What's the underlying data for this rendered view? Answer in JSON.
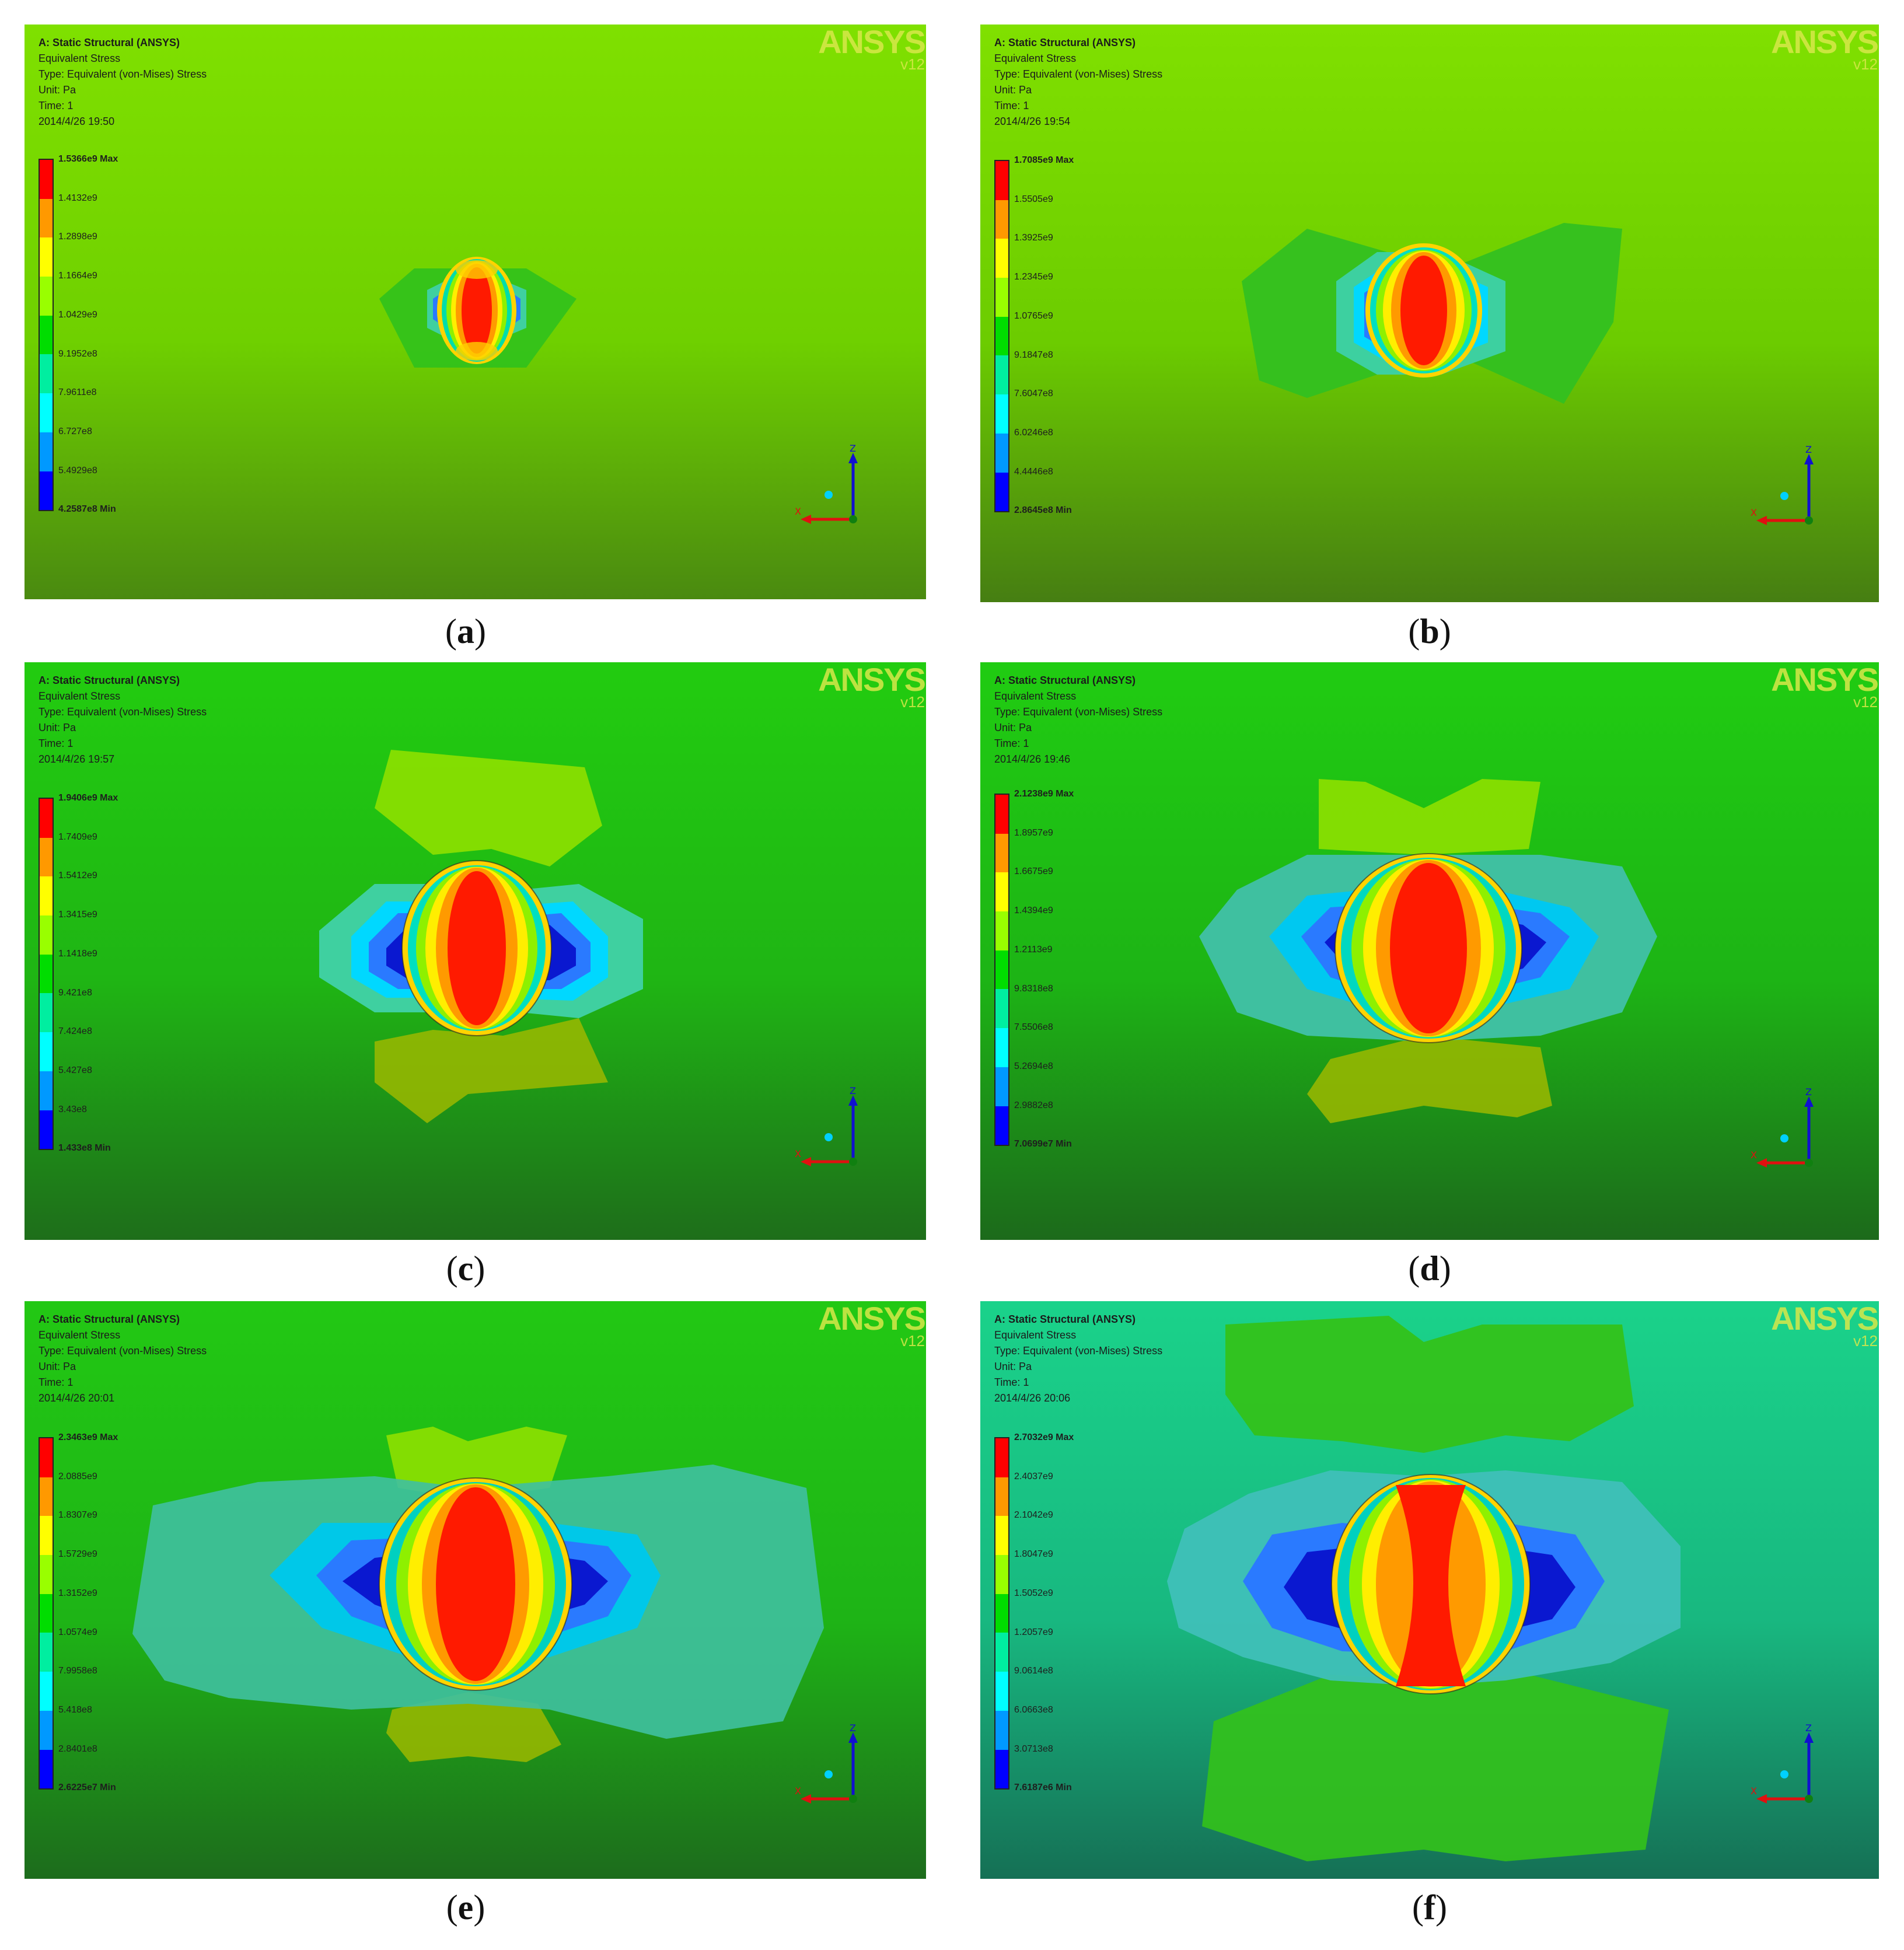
{
  "panels": [
    {
      "caption_letter": "a",
      "header": {
        "title": "A: Static Structural (ANSYS)",
        "result": "Equivalent Stress",
        "type": "Type: Equivalent (von-Mises) Stress",
        "unit": "Unit: Pa",
        "time": "Time: 1",
        "timestamp": "2014/4/26 19:50"
      },
      "legend": [
        "1.5366e9 Max",
        "1.4132e9",
        "1.2898e9",
        "1.1664e9",
        "1.0429e9",
        "9.1952e8",
        "7.9611e8",
        "6.727e8",
        "5.4929e8",
        "4.2587e8 Min"
      ],
      "logo": "ANSYS",
      "version": "v12",
      "background": {
        "top": "#7fe000",
        "mid": "#6fd000",
        "bottom": "#4a8a10"
      }
    },
    {
      "caption_letter": "b",
      "header": {
        "title": "A: Static Structural (ANSYS)",
        "result": "Equivalent Stress",
        "type": "Type: Equivalent (von-Mises) Stress",
        "unit": "Unit: Pa",
        "time": "Time: 1",
        "timestamp": "2014/4/26 19:54"
      },
      "legend": [
        "1.7085e9 Max",
        "1.5505e9",
        "1.3925e9",
        "1.2345e9",
        "1.0765e9",
        "9.1847e8",
        "7.6047e8",
        "6.0246e8",
        "4.4446e8",
        "2.8645e8 Min"
      ],
      "logo": "ANSYS",
      "version": "v12",
      "background": {
        "top": "#80e000",
        "mid": "#6ccc00",
        "bottom": "#467e12"
      }
    },
    {
      "caption_letter": "c",
      "header": {
        "title": "A: Static Structural (ANSYS)",
        "result": "Equivalent Stress",
        "type": "Type: Equivalent (von-Mises) Stress",
        "unit": "Unit: Pa",
        "time": "Time: 1",
        "timestamp": "2014/4/26 19:57"
      },
      "legend": [
        "1.9406e9 Max",
        "1.7409e9",
        "1.5412e9",
        "1.3415e9",
        "1.1418e9",
        "9.421e8",
        "7.424e8",
        "5.427e8",
        "3.43e8",
        "1.433e8 Min"
      ],
      "logo": "ANSYS",
      "version": "v12",
      "background": {
        "top": "#22cc10",
        "mid": "#1fb514",
        "bottom": "#1e6e1a"
      }
    },
    {
      "caption_letter": "d",
      "header": {
        "title": "A: Static Structural (ANSYS)",
        "result": "Equivalent Stress",
        "type": "Type: Equivalent (von-Mises) Stress",
        "unit": "Unit: Pa",
        "time": "Time: 1",
        "timestamp": "2014/4/26 19:46"
      },
      "legend": [
        "2.1238e9 Max",
        "1.8957e9",
        "1.6675e9",
        "1.4394e9",
        "1.2113e9",
        "9.8318e8",
        "7.5506e8",
        "5.2694e8",
        "2.9882e8",
        "7.0699e7 Min"
      ],
      "logo": "ANSYS",
      "version": "v12",
      "background": {
        "top": "#20cc12",
        "mid": "#1db415",
        "bottom": "#1c6a1b"
      }
    },
    {
      "caption_letter": "e",
      "header": {
        "title": "A: Static Structural (ANSYS)",
        "result": "Equivalent Stress",
        "type": "Type: Equivalent (von-Mises) Stress",
        "unit": "Unit: Pa",
        "time": "Time: 1",
        "timestamp": "2014/4/26 20:01"
      },
      "legend": [
        "2.3463e9 Max",
        "2.0885e9",
        "1.8307e9",
        "1.5729e9",
        "1.3152e9",
        "1.0574e9",
        "7.9958e8",
        "5.418e8",
        "2.8401e8",
        "2.6225e7 Min"
      ],
      "logo": "ANSYS",
      "version": "v12",
      "background": {
        "top": "#22c814",
        "mid": "#1eb416",
        "bottom": "#1d6c1c"
      }
    },
    {
      "caption_letter": "f",
      "header": {
        "title": "A: Static Structural (ANSYS)",
        "result": "Equivalent Stress",
        "type": "Type: Equivalent (von-Mises) Stress",
        "unit": "Unit: Pa",
        "time": "Time: 1",
        "timestamp": "2014/4/26 20:06"
      },
      "legend": [
        "2.7032e9 Max",
        "2.4037e9",
        "2.1042e9",
        "1.8047e9",
        "1.5052e9",
        "1.2057e9",
        "9.0614e8",
        "6.0663e8",
        "3.0713e8",
        "7.6187e6 Min"
      ],
      "logo": "ANSYS",
      "version": "v12",
      "background": {
        "top": "#1ad28a",
        "mid": "#18b880",
        "bottom": "#157055"
      }
    }
  ],
  "legend_colors": [
    "#ff0000",
    "#ff9900",
    "#ffff00",
    "#99ff00",
    "#00dd00",
    "#00eea0",
    "#00ffff",
    "#0099ff",
    "#0000ff"
  ],
  "axis_labels": {
    "x": "X",
    "z": "Z"
  }
}
